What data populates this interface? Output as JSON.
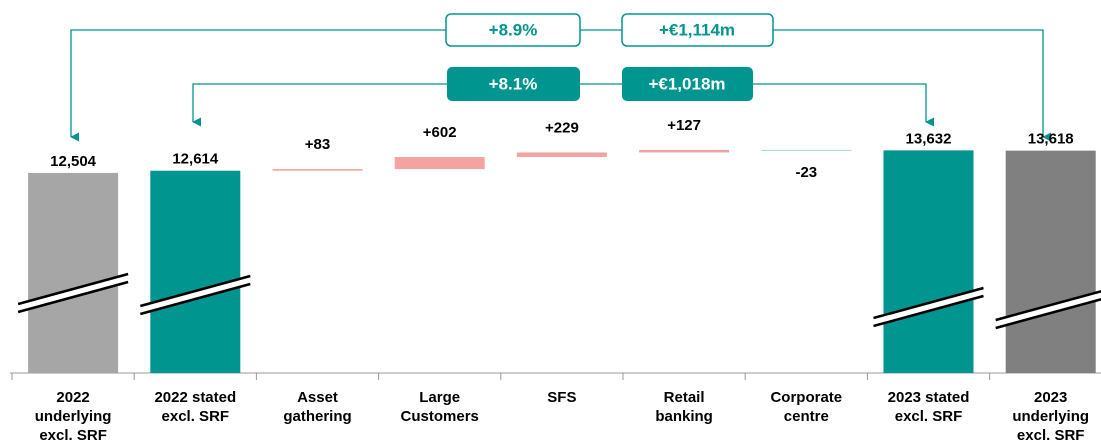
{
  "chart_data": {
    "type": "waterfall",
    "categories": [
      [
        "2022",
        "underlying",
        "excl. SRF"
      ],
      [
        "2022 stated",
        "excl. SRF"
      ],
      [
        "Asset",
        "gathering"
      ],
      [
        "Large",
        "Customers"
      ],
      [
        "SFS"
      ],
      [
        "Retail",
        "banking"
      ],
      [
        "Corporate",
        "centre"
      ],
      [
        "2023 stated",
        "excl. SRF"
      ],
      [
        "2023",
        "underlying",
        "excl. SRF"
      ]
    ],
    "values": [
      12504,
      12614,
      83,
      602,
      229,
      127,
      -23,
      13632,
      13618
    ],
    "value_labels": [
      "12,504",
      "12,614",
      "+83",
      "+602",
      "+229",
      "+127",
      "-23",
      "13,632",
      "13,618"
    ],
    "measure": [
      "absolute",
      "absolute",
      "relative",
      "relative",
      "relative",
      "relative",
      "relative",
      "absolute",
      "absolute"
    ],
    "colors": [
      "#a6a6a6",
      "#00968f",
      "#f4a3a3",
      "#f4a3a3",
      "#f4a3a3",
      "#f4a3a3",
      "#9fd6d3",
      "#00968f",
      "#808080"
    ],
    "ylim": [
      2500,
      14000
    ],
    "annotations": {
      "underlying_pct": "+8.9%",
      "underlying_abs": "+€1,114m",
      "stated_pct": "+8.1%",
      "stated_abs": "+€1,018m"
    }
  }
}
